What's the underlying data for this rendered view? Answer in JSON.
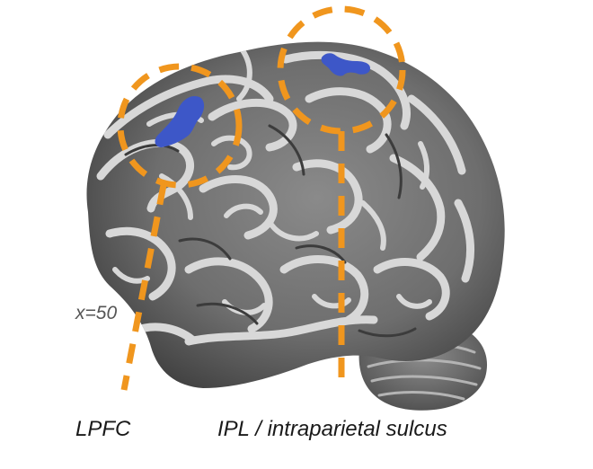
{
  "figure": {
    "slice_label": "x=50",
    "regions": [
      {
        "id": "lpfc",
        "label": "LPFC"
      },
      {
        "id": "ipl",
        "label": "IPL / intraparietal sulcus"
      }
    ],
    "colors": {
      "highlight_circle": "#f0961e",
      "activation": "#3d57c8",
      "brain_dark": "#4a4a4a",
      "brain_light": "#d6d6d6",
      "background": "#ffffff"
    }
  }
}
